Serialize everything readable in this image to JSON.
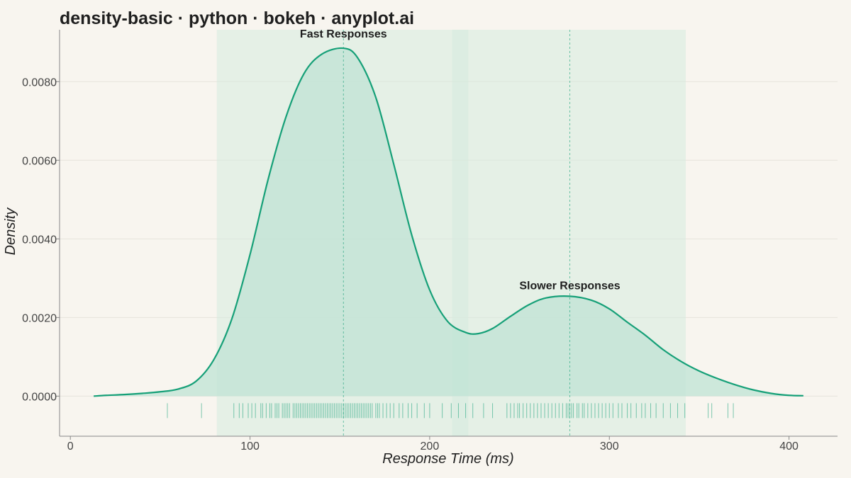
{
  "chart_data": {
    "type": "area",
    "title": "density-basic · python · bokeh · anyplot.ai",
    "xlabel": "Response Time (ms)",
    "ylabel": "Density",
    "xlim": [
      -6,
      427
    ],
    "ylim": [
      -0.00102,
      0.00932
    ],
    "xticks": [
      0,
      100,
      200,
      300,
      400
    ],
    "yticks": [
      0.0,
      0.002,
      0.004,
      0.006,
      0.008
    ],
    "ytick_labels": [
      "0.0000",
      "0.0020",
      "0.0040",
      "0.0060",
      "0.0080"
    ],
    "grid": true,
    "colors": {
      "line": "#16a078",
      "fill": "#bfe3d4",
      "region": "#d6ebdf",
      "rug": "#16a078",
      "background": "#f8f5ef",
      "grid": "#e6e3dc"
    },
    "regions": [
      {
        "x0": 81.5,
        "x1": 221.5
      },
      {
        "x0": 212.5,
        "x1": 342.5
      }
    ],
    "peak_lines": [
      152,
      278
    ],
    "annotations": [
      {
        "text": "Fast Responses",
        "x": 152,
        "y": 0.0091
      },
      {
        "text": "Slower Responses",
        "x": 278,
        "y": 0.0027
      }
    ],
    "density": {
      "x": [
        13,
        20,
        30,
        40,
        50,
        60,
        70,
        80,
        90,
        100,
        110,
        120,
        130,
        140,
        152,
        160,
        170,
        180,
        190,
        200,
        210,
        220,
        227,
        235,
        245,
        255,
        265,
        278,
        290,
        300,
        310,
        320,
        330,
        340,
        350,
        360,
        370,
        380,
        390,
        400,
        408
      ],
      "y": [
        0.0,
        2e-05,
        4e-05,
        7e-05,
        0.00011,
        0.00018,
        0.00038,
        0.00094,
        0.00198,
        0.0036,
        0.0055,
        0.0071,
        0.0082,
        0.0087,
        0.00885,
        0.0086,
        0.0076,
        0.0059,
        0.0041,
        0.0027,
        0.0019,
        0.00162,
        0.00159,
        0.00172,
        0.00203,
        0.00232,
        0.0025,
        0.00254,
        0.00244,
        0.00222,
        0.00188,
        0.00155,
        0.00118,
        0.00088,
        0.00064,
        0.00045,
        0.00029,
        0.00016,
        7e-05,
        2e-05,
        1e-05
      ]
    },
    "rug": [
      54,
      73,
      91,
      94,
      96,
      99,
      101,
      103,
      106,
      107,
      109,
      111,
      112,
      114,
      115,
      116,
      118,
      119,
      120,
      121,
      122,
      124,
      125,
      126,
      127,
      128,
      129,
      130,
      131,
      132,
      133,
      134,
      135,
      136,
      137,
      138,
      139,
      140,
      141,
      142,
      143,
      144,
      145,
      146,
      147,
      148,
      149,
      150,
      151,
      152,
      153,
      154,
      155,
      156,
      157,
      158,
      159,
      160,
      161,
      162,
      163,
      164,
      165,
      166,
      167,
      168,
      170,
      171,
      172,
      174,
      176,
      178,
      180,
      183,
      185,
      188,
      190,
      193,
      197,
      200,
      207,
      212,
      216,
      220,
      224,
      230,
      235,
      243,
      245,
      247,
      249,
      250,
      252,
      254,
      256,
      258,
      260,
      262,
      264,
      266,
      268,
      270,
      272,
      274,
      276,
      277,
      278,
      279,
      280,
      282,
      283,
      285,
      286,
      288,
      290,
      292,
      294,
      296,
      298,
      300,
      302,
      305,
      307,
      310,
      312,
      315,
      318,
      320,
      323,
      326,
      330,
      334,
      338,
      342,
      355,
      357,
      366,
      369
    ]
  }
}
